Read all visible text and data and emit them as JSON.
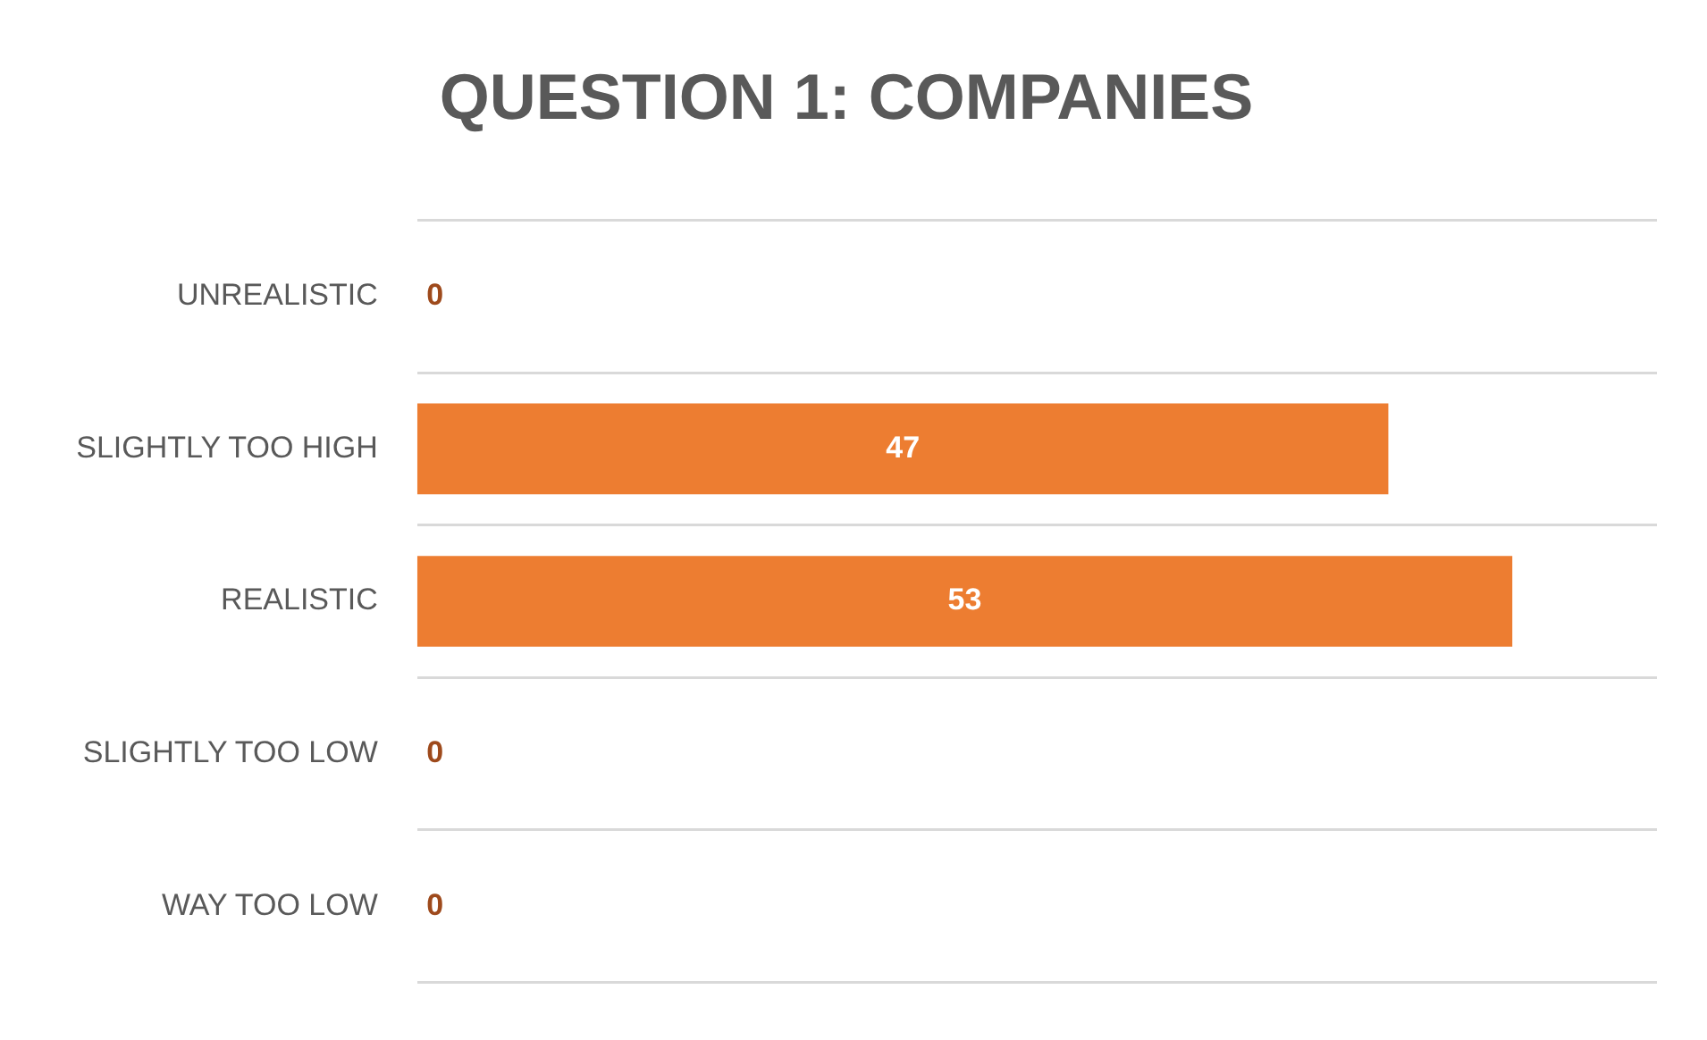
{
  "chart_data": {
    "type": "bar",
    "orientation": "horizontal",
    "title": "QUESTION 1: COMPANIES",
    "categories": [
      "UNREALISTIC",
      "SLIGHTLY TOO HIGH",
      "REALISTIC",
      "SLIGHTLY TOO LOW",
      "WAY TOO LOW"
    ],
    "values": [
      0,
      47,
      53,
      0,
      0
    ],
    "color": "#ed7d31",
    "data_labels": true,
    "grid": "y",
    "legend": false
  }
}
